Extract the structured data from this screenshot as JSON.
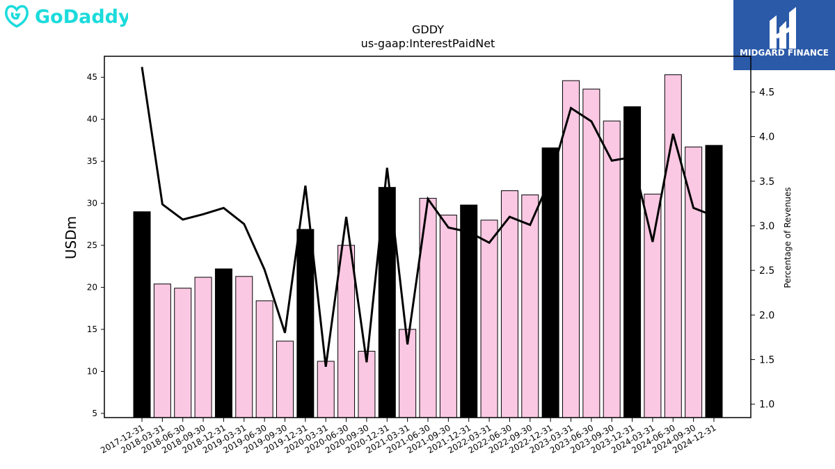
{
  "brand": {
    "left_logo_text": "GoDaddy",
    "left_logo_color": "#1bdbdb",
    "right_logo_text": "MIDGARD FINANCE",
    "right_logo_bg": "#2b5aa8"
  },
  "chart_data": {
    "type": "bar",
    "title": "GDDY",
    "subtitle": "us-gaap:InterestPaidNet",
    "ylabel": "USDm",
    "ylabel_right": "Percentage of Revenues",
    "ylim": [
      4.5,
      47.5
    ],
    "ylim_right": [
      0.85,
      4.9
    ],
    "yticks": [
      5,
      10,
      15,
      20,
      25,
      30,
      35,
      40,
      45
    ],
    "yticks_right": [
      "1.0",
      "1.5",
      "2.0",
      "2.5",
      "3.0",
      "3.5",
      "4.0",
      "4.5"
    ],
    "categories": [
      "2017-12-31",
      "2018-03-31",
      "2018-06-30",
      "2018-09-30",
      "2018-12-31",
      "2019-03-31",
      "2019-06-30",
      "2019-09-30",
      "2019-12-31",
      "2020-03-31",
      "2020-06-30",
      "2020-09-30",
      "2020-12-31",
      "2021-03-31",
      "2021-06-30",
      "2021-09-30",
      "2021-12-31",
      "2022-03-31",
      "2022-06-30",
      "2022-09-30",
      "2022-12-31",
      "2023-03-31",
      "2023-06-30",
      "2023-09-30",
      "2023-12-31",
      "2024-03-31",
      "2024-06-30",
      "2024-09-30",
      "2024-12-31"
    ],
    "series": [
      {
        "axis": "left",
        "kind": "bar",
        "values": [
          29.0,
          20.4,
          19.9,
          21.2,
          22.2,
          21.3,
          18.4,
          13.6,
          26.9,
          11.2,
          25.0,
          12.4,
          31.9,
          15.0,
          30.6,
          28.6,
          29.8,
          28.0,
          31.5,
          31.0,
          36.6,
          44.6,
          43.6,
          39.8,
          41.5,
          31.1,
          45.3,
          36.7,
          36.9
        ],
        "highlight": [
          true,
          false,
          false,
          false,
          true,
          false,
          false,
          false,
          true,
          false,
          false,
          false,
          true,
          false,
          false,
          false,
          true,
          false,
          false,
          false,
          true,
          false,
          false,
          false,
          true,
          false,
          false,
          false,
          true
        ],
        "color": "#fbc8e3",
        "highlight_color": "#000000"
      },
      {
        "axis": "right",
        "kind": "line",
        "values": [
          4.78,
          3.24,
          3.07,
          3.13,
          3.2,
          3.02,
          2.51,
          1.8,
          3.45,
          1.42,
          3.1,
          1.47,
          3.65,
          1.67,
          3.3,
          2.98,
          2.93,
          2.81,
          3.1,
          3.01,
          3.53,
          4.32,
          4.17,
          3.73,
          3.77,
          2.82,
          4.03,
          3.2,
          3.11
        ],
        "color": "#000000"
      }
    ],
    "grid": false,
    "legend": "none"
  }
}
